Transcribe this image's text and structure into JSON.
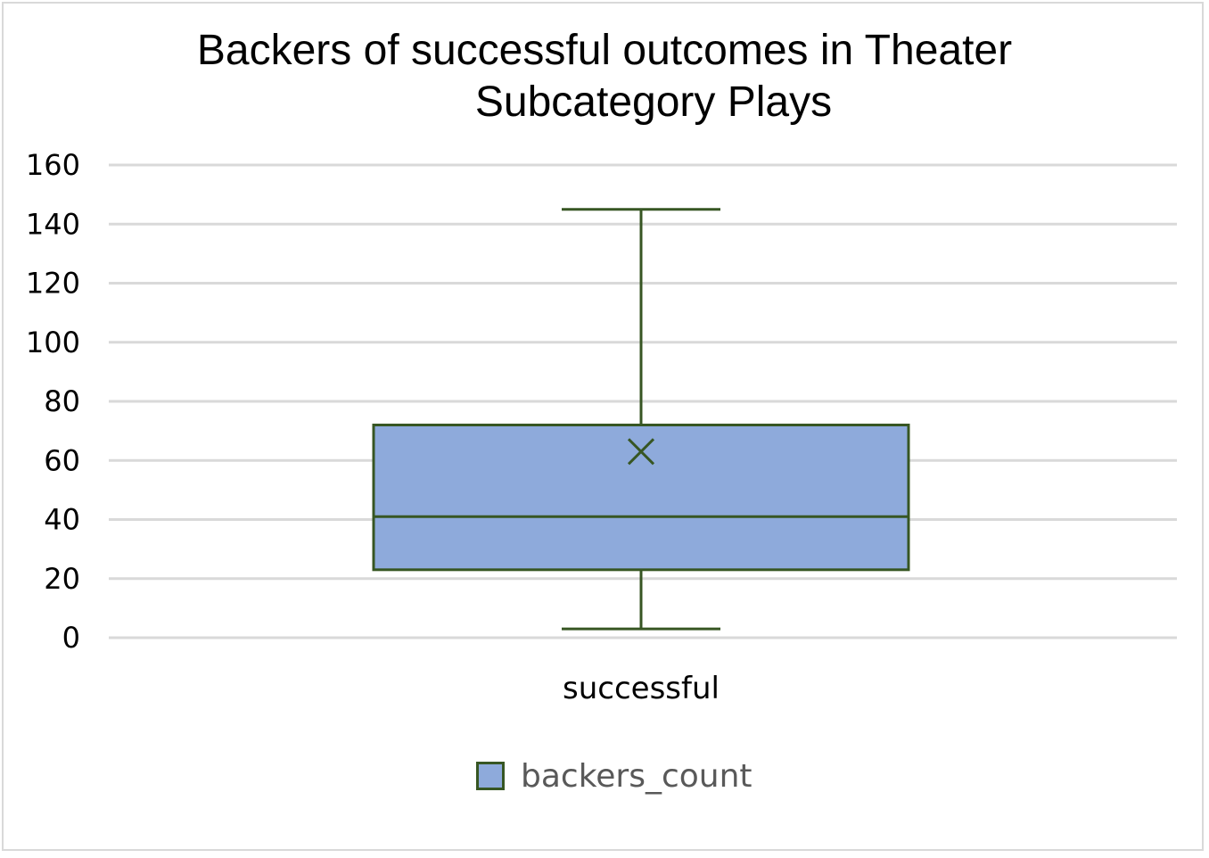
{
  "chart_data": {
    "type": "box",
    "title_lines": [
      "Backers of successful outcomes in Theater",
      "Subcategory Plays"
    ],
    "categories": [
      "successful"
    ],
    "series": [
      {
        "name": "backers_count",
        "stats": {
          "min": 3,
          "q1": 23,
          "median": 41,
          "q3": 72,
          "max": 145,
          "mean": 63
        }
      }
    ],
    "yticks": [
      "0",
      "20",
      "40",
      "60",
      "80",
      "100",
      "120",
      "140",
      "160"
    ],
    "ylim": [
      0,
      160
    ],
    "grid": true,
    "legend_position": "bottom",
    "colors": {
      "box_fill": "#8eaadb",
      "box_stroke": "#375623",
      "grid": "#d9d9d9"
    }
  }
}
